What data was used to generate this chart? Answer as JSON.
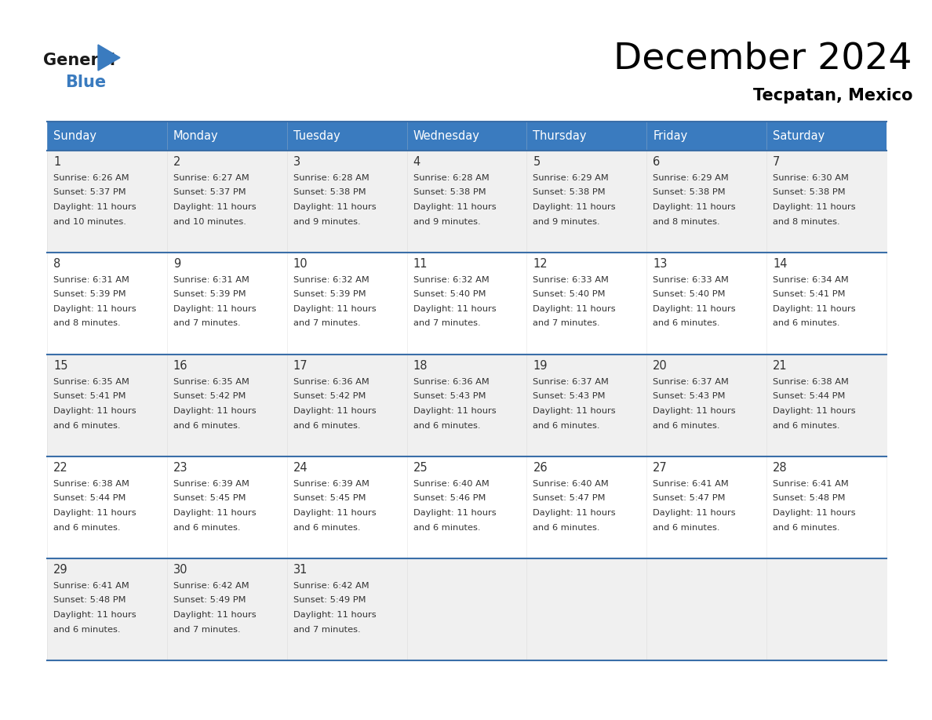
{
  "title": "December 2024",
  "subtitle": "Tecpatan, Mexico",
  "header_bg": "#3a7bbf",
  "header_text_color": "#ffffff",
  "cell_bg_odd": "#f0f0f0",
  "cell_bg_even": "#ffffff",
  "border_color": "#3a6ea8",
  "text_color": "#333333",
  "days_of_week": [
    "Sunday",
    "Monday",
    "Tuesday",
    "Wednesday",
    "Thursday",
    "Friday",
    "Saturday"
  ],
  "calendar_data": [
    [
      {
        "day": 1,
        "sunrise": "6:26 AM",
        "sunset": "5:37 PM",
        "daylight_hours": 11,
        "daylight_minutes": 10
      },
      {
        "day": 2,
        "sunrise": "6:27 AM",
        "sunset": "5:37 PM",
        "daylight_hours": 11,
        "daylight_minutes": 10
      },
      {
        "day": 3,
        "sunrise": "6:28 AM",
        "sunset": "5:38 PM",
        "daylight_hours": 11,
        "daylight_minutes": 9
      },
      {
        "day": 4,
        "sunrise": "6:28 AM",
        "sunset": "5:38 PM",
        "daylight_hours": 11,
        "daylight_minutes": 9
      },
      {
        "day": 5,
        "sunrise": "6:29 AM",
        "sunset": "5:38 PM",
        "daylight_hours": 11,
        "daylight_minutes": 9
      },
      {
        "day": 6,
        "sunrise": "6:29 AM",
        "sunset": "5:38 PM",
        "daylight_hours": 11,
        "daylight_minutes": 8
      },
      {
        "day": 7,
        "sunrise": "6:30 AM",
        "sunset": "5:38 PM",
        "daylight_hours": 11,
        "daylight_minutes": 8
      }
    ],
    [
      {
        "day": 8,
        "sunrise": "6:31 AM",
        "sunset": "5:39 PM",
        "daylight_hours": 11,
        "daylight_minutes": 8
      },
      {
        "day": 9,
        "sunrise": "6:31 AM",
        "sunset": "5:39 PM",
        "daylight_hours": 11,
        "daylight_minutes": 7
      },
      {
        "day": 10,
        "sunrise": "6:32 AM",
        "sunset": "5:39 PM",
        "daylight_hours": 11,
        "daylight_minutes": 7
      },
      {
        "day": 11,
        "sunrise": "6:32 AM",
        "sunset": "5:40 PM",
        "daylight_hours": 11,
        "daylight_minutes": 7
      },
      {
        "day": 12,
        "sunrise": "6:33 AM",
        "sunset": "5:40 PM",
        "daylight_hours": 11,
        "daylight_minutes": 7
      },
      {
        "day": 13,
        "sunrise": "6:33 AM",
        "sunset": "5:40 PM",
        "daylight_hours": 11,
        "daylight_minutes": 6
      },
      {
        "day": 14,
        "sunrise": "6:34 AM",
        "sunset": "5:41 PM",
        "daylight_hours": 11,
        "daylight_minutes": 6
      }
    ],
    [
      {
        "day": 15,
        "sunrise": "6:35 AM",
        "sunset": "5:41 PM",
        "daylight_hours": 11,
        "daylight_minutes": 6
      },
      {
        "day": 16,
        "sunrise": "6:35 AM",
        "sunset": "5:42 PM",
        "daylight_hours": 11,
        "daylight_minutes": 6
      },
      {
        "day": 17,
        "sunrise": "6:36 AM",
        "sunset": "5:42 PM",
        "daylight_hours": 11,
        "daylight_minutes": 6
      },
      {
        "day": 18,
        "sunrise": "6:36 AM",
        "sunset": "5:43 PM",
        "daylight_hours": 11,
        "daylight_minutes": 6
      },
      {
        "day": 19,
        "sunrise": "6:37 AM",
        "sunset": "5:43 PM",
        "daylight_hours": 11,
        "daylight_minutes": 6
      },
      {
        "day": 20,
        "sunrise": "6:37 AM",
        "sunset": "5:43 PM",
        "daylight_hours": 11,
        "daylight_minutes": 6
      },
      {
        "day": 21,
        "sunrise": "6:38 AM",
        "sunset": "5:44 PM",
        "daylight_hours": 11,
        "daylight_minutes": 6
      }
    ],
    [
      {
        "day": 22,
        "sunrise": "6:38 AM",
        "sunset": "5:44 PM",
        "daylight_hours": 11,
        "daylight_minutes": 6
      },
      {
        "day": 23,
        "sunrise": "6:39 AM",
        "sunset": "5:45 PM",
        "daylight_hours": 11,
        "daylight_minutes": 6
      },
      {
        "day": 24,
        "sunrise": "6:39 AM",
        "sunset": "5:45 PM",
        "daylight_hours": 11,
        "daylight_minutes": 6
      },
      {
        "day": 25,
        "sunrise": "6:40 AM",
        "sunset": "5:46 PM",
        "daylight_hours": 11,
        "daylight_minutes": 6
      },
      {
        "day": 26,
        "sunrise": "6:40 AM",
        "sunset": "5:47 PM",
        "daylight_hours": 11,
        "daylight_minutes": 6
      },
      {
        "day": 27,
        "sunrise": "6:41 AM",
        "sunset": "5:47 PM",
        "daylight_hours": 11,
        "daylight_minutes": 6
      },
      {
        "day": 28,
        "sunrise": "6:41 AM",
        "sunset": "5:48 PM",
        "daylight_hours": 11,
        "daylight_minutes": 6
      }
    ],
    [
      {
        "day": 29,
        "sunrise": "6:41 AM",
        "sunset": "5:48 PM",
        "daylight_hours": 11,
        "daylight_minutes": 6
      },
      {
        "day": 30,
        "sunrise": "6:42 AM",
        "sunset": "5:49 PM",
        "daylight_hours": 11,
        "daylight_minutes": 7
      },
      {
        "day": 31,
        "sunrise": "6:42 AM",
        "sunset": "5:49 PM",
        "daylight_hours": 11,
        "daylight_minutes": 7
      },
      null,
      null,
      null,
      null
    ]
  ]
}
